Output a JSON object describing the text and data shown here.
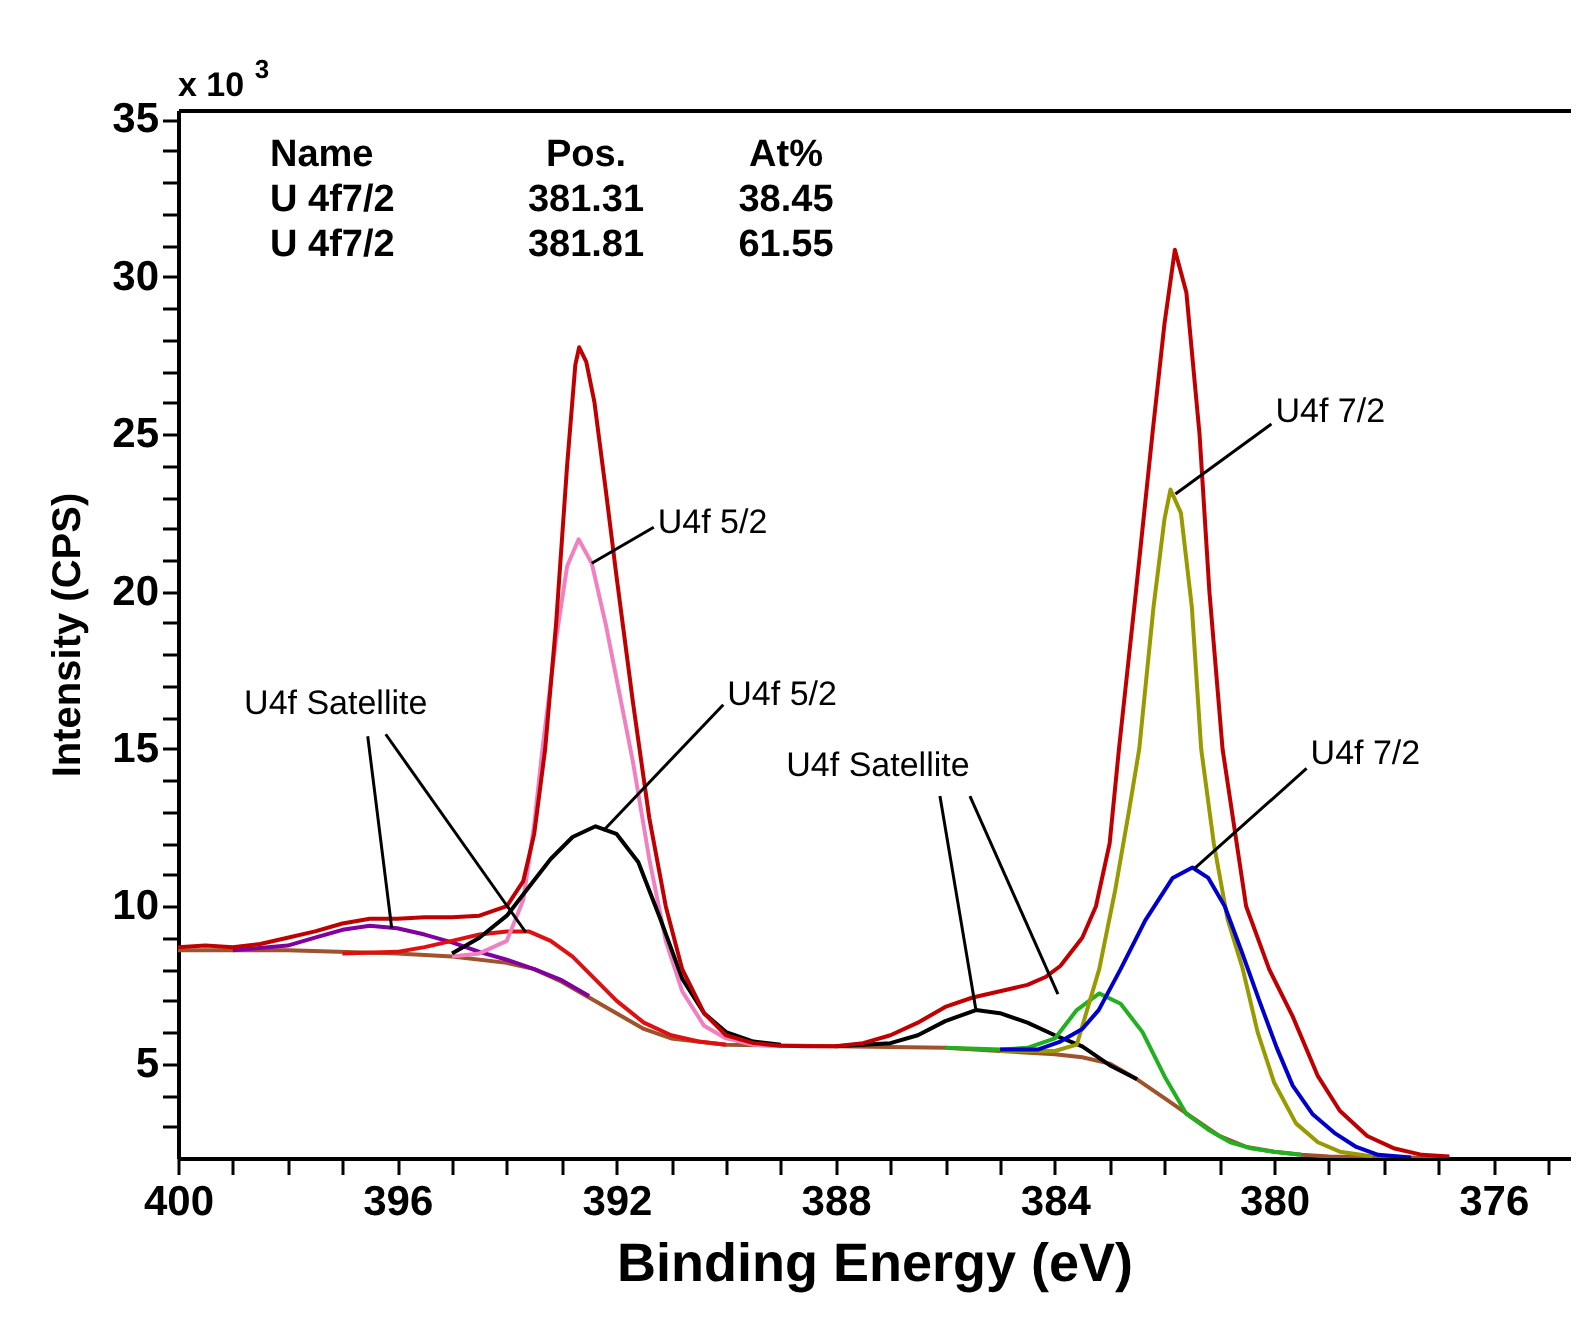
{
  "chart_data": {
    "type": "line",
    "xlabel": "Binding Energy (eV)",
    "ylabel": "Intensity (CPS)",
    "xlim": [
      400,
      374.6
    ],
    "ylim": [
      2,
      35.3
    ],
    "xticks": [
      400,
      {
        "value": 399,
        "label": null
      },
      {
        "value": 398,
        "label": null
      },
      {
        "value": 397,
        "label": null
      },
      396,
      {
        "value": 395,
        "label": null
      },
      {
        "value": 394,
        "label": null
      },
      {
        "value": 393,
        "label": null
      },
      392,
      {
        "value": 391,
        "label": null
      },
      {
        "value": 390,
        "label": null
      },
      {
        "value": 389,
        "label": null
      },
      388,
      {
        "value": 387,
        "label": null
      },
      {
        "value": 386,
        "label": null
      },
      {
        "value": 385,
        "label": null
      },
      384,
      {
        "value": 383,
        "label": null
      },
      {
        "value": 382,
        "label": null
      },
      {
        "value": 381,
        "label": null
      },
      380,
      {
        "value": 379,
        "label": null
      },
      {
        "value": 378,
        "label": null
      },
      {
        "value": 377,
        "label": null
      },
      376,
      {
        "value": 375,
        "label": null
      }
    ],
    "yticks": [
      {
        "value": 3,
        "label": null
      },
      {
        "value": 4,
        "label": null
      },
      5,
      {
        "value": 6,
        "label": null
      },
      {
        "value": 7,
        "label": null
      },
      {
        "value": 8,
        "label": null
      },
      {
        "value": 9,
        "label": null
      },
      10,
      {
        "value": 11,
        "label": null
      },
      {
        "value": 12,
        "label": null
      },
      {
        "value": 13,
        "label": null
      },
      {
        "value": 14,
        "label": null
      },
      15,
      {
        "value": 16,
        "label": null
      },
      {
        "value": 17,
        "label": null
      },
      {
        "value": 18,
        "label": null
      },
      {
        "value": 19,
        "label": null
      },
      20,
      {
        "value": 21,
        "label": null
      },
      {
        "value": 22,
        "label": null
      },
      {
        "value": 23,
        "label": null
      },
      {
        "value": 24,
        "label": null
      },
      25,
      {
        "value": 26,
        "label": null
      },
      {
        "value": 27,
        "label": null
      },
      {
        "value": 28,
        "label": null
      },
      {
        "value": 29,
        "label": null
      },
      30,
      {
        "value": 31,
        "label": null
      },
      {
        "value": 32,
        "label": null
      },
      {
        "value": 33,
        "label": null
      },
      {
        "value": 34,
        "label": null
      },
      35
    ],
    "grid": false,
    "series": [
      {
        "color": "#a0522d",
        "x": [
          400,
          398,
          396,
          395,
          394,
          393.5,
          393,
          392.5,
          392,
          391.5,
          391,
          390,
          388,
          386,
          385,
          384,
          383.5,
          383,
          382.5,
          382,
          381.5,
          381,
          380.5,
          380,
          379.5,
          379,
          377
        ],
        "values": [
          8.6,
          8.6,
          8.5,
          8.4,
          8.2,
          8.0,
          7.6,
          7.1,
          6.6,
          6.1,
          5.8,
          5.6,
          5.55,
          5.5,
          5.4,
          5.3,
          5.2,
          5.0,
          4.5,
          3.9,
          3.3,
          2.7,
          2.35,
          2.2,
          2.1,
          2.05,
          2.0
        ]
      },
      {
        "color": "#8000a0",
        "x": [
          399,
          398,
          397.5,
          397,
          396.5,
          396,
          395.5,
          395,
          394.5,
          394,
          393.5,
          393,
          392.5
        ],
        "values": [
          8.6,
          8.75,
          9.0,
          9.25,
          9.38,
          9.3,
          9.1,
          8.85,
          8.55,
          8.3,
          8.0,
          7.65,
          7.15
        ]
      },
      {
        "color": "#e01010",
        "x": [
          397,
          396,
          395.5,
          395,
          394.5,
          394,
          393.6,
          393.2,
          392.8,
          392.4,
          392,
          391.5,
          391,
          390.5,
          390
        ],
        "values": [
          8.5,
          8.55,
          8.7,
          8.9,
          9.1,
          9.2,
          9.2,
          8.9,
          8.4,
          7.7,
          7.0,
          6.3,
          5.9,
          5.7,
          5.6
        ]
      },
      {
        "color": "#f080c0",
        "x": [
          395,
          394.5,
          394,
          393.7,
          393.5,
          393.35,
          393.1,
          392.9,
          392.69,
          392.45,
          392.2,
          391.95,
          391.7,
          391.4,
          391.1,
          390.8,
          390.4,
          390,
          389.5,
          389
        ],
        "values": [
          8.4,
          8.5,
          8.9,
          10.2,
          12.6,
          15.0,
          18.5,
          20.8,
          21.66,
          20.9,
          19.0,
          16.8,
          14.6,
          11.5,
          8.9,
          7.3,
          6.2,
          5.8,
          5.6,
          5.55
        ]
      },
      {
        "color": "#000000",
        "x": [
          395,
          394.5,
          394,
          393.6,
          393.2,
          392.8,
          392.38,
          392,
          391.6,
          391.2,
          390.8,
          390.4,
          390,
          389.5,
          389
        ],
        "values": [
          8.5,
          9.0,
          9.7,
          10.6,
          11.5,
          12.2,
          12.54,
          12.3,
          11.4,
          9.6,
          7.7,
          6.6,
          6.0,
          5.7,
          5.6
        ]
      },
      {
        "color": "#000000",
        "x": [
          388,
          387,
          386.5,
          386,
          385.44,
          385,
          384.5,
          384,
          383.5,
          383,
          382.5
        ],
        "values": [
          5.55,
          5.65,
          5.9,
          6.35,
          6.7,
          6.6,
          6.3,
          5.9,
          5.55,
          4.95,
          4.5
        ]
      },
      {
        "color": "#20b020",
        "x": [
          386,
          385,
          384.5,
          384,
          383.6,
          383.19,
          382.8,
          382.4,
          382,
          381.6,
          381.2,
          380.8,
          380.4,
          380,
          379.5
        ],
        "values": [
          5.5,
          5.45,
          5.5,
          5.8,
          6.7,
          7.23,
          6.9,
          6.0,
          4.6,
          3.4,
          2.9,
          2.5,
          2.3,
          2.2,
          2.1
        ]
      },
      {
        "color": "#999900",
        "x": [
          385,
          384,
          383.6,
          383.19,
          382.9,
          382.65,
          382.46,
          382.2,
          382,
          381.89,
          381.7,
          381.5,
          381.33,
          381.1,
          380.85,
          380.57,
          380.3,
          380,
          379.6,
          379.2,
          378.8,
          378.2
        ],
        "values": [
          5.4,
          5.4,
          5.6,
          8.0,
          10.5,
          13.0,
          15.0,
          19.5,
          22.3,
          23.24,
          22.5,
          19.5,
          15.0,
          12.0,
          9.6,
          8.0,
          6.0,
          4.4,
          3.1,
          2.5,
          2.2,
          2.05
        ]
      },
      {
        "color": "#0000cc",
        "x": [
          385,
          384.3,
          383.9,
          383.5,
          383.2,
          382.8,
          382.35,
          381.85,
          381.49,
          381.2,
          380.9,
          380.6,
          380.27,
          379.95,
          379.66,
          379.3,
          378.9,
          378.5,
          378.1,
          377.5
        ],
        "values": [
          5.45,
          5.45,
          5.7,
          6.1,
          6.7,
          8.0,
          9.55,
          10.9,
          11.23,
          10.9,
          10.0,
          8.6,
          7.0,
          5.5,
          4.3,
          3.4,
          2.8,
          2.35,
          2.1,
          2.02
        ]
      },
      {
        "color": "#c00000",
        "x": [
          400,
          399.5,
          399,
          398.5,
          398,
          397.5,
          397,
          396.5,
          396,
          395.5,
          395,
          394.5,
          394,
          393.7,
          393.5,
          393.3,
          393.1,
          392.9,
          392.75,
          392.68,
          392.55,
          392.4,
          392.2,
          392,
          391.7,
          391.4,
          391.1,
          390.8,
          390.4,
          390,
          389.5,
          389,
          388.5,
          388,
          387.5,
          387,
          386.5,
          386,
          385.5,
          385,
          384.5,
          384.16,
          383.9,
          383.5,
          383.25,
          383,
          382.83,
          382.52,
          382.22,
          382,
          381.81,
          381.6,
          381.36,
          381.18,
          380.94,
          380.51,
          380.09,
          379.66,
          379.2,
          378.8,
          378.3,
          377.8,
          377.3,
          376.8
        ],
        "values": [
          8.7,
          8.75,
          8.7,
          8.8,
          9.0,
          9.2,
          9.45,
          9.6,
          9.6,
          9.65,
          9.65,
          9.7,
          10.0,
          10.8,
          12.3,
          15.0,
          19.0,
          24.0,
          27.2,
          27.76,
          27.3,
          26.0,
          23.3,
          20.5,
          16.5,
          12.8,
          10.0,
          8.0,
          6.6,
          5.9,
          5.65,
          5.57,
          5.55,
          5.55,
          5.65,
          5.9,
          6.3,
          6.8,
          7.1,
          7.3,
          7.5,
          7.76,
          8.1,
          9.0,
          10.0,
          12.0,
          15.0,
          20.0,
          25.0,
          28.5,
          30.86,
          29.5,
          25.0,
          20.0,
          15.0,
          10.0,
          8.0,
          6.5,
          4.6,
          3.5,
          2.7,
          2.3,
          2.1,
          2.05
        ]
      }
    ],
    "annotations": [
      "x 10$^{3}$",
      "Name",
      "Pos.",
      "At%",
      "U 4f7/2",
      "381.31",
      "38.45",
      "U 4f7/2",
      "381.81",
      "61.55",
      {
        "text": "U4f 5/2",
        "x": 392.45,
        "y": 20.9
      },
      {
        "text": "U4f 5/2",
        "x": 392.24,
        "y": 12.4
      },
      {
        "text": "U4f 7/2",
        "x": 381.8,
        "y": 23.1
      },
      {
        "text": "U4f 7/2",
        "x": 381.45,
        "y": 11.2
      },
      {
        "text": "U4f Satellite",
        "x": 396.1,
        "y": 9.3
      },
      {
        "text": "U4f Satellite",
        "x": 385.44,
        "y": 6.7
      }
    ]
  }
}
